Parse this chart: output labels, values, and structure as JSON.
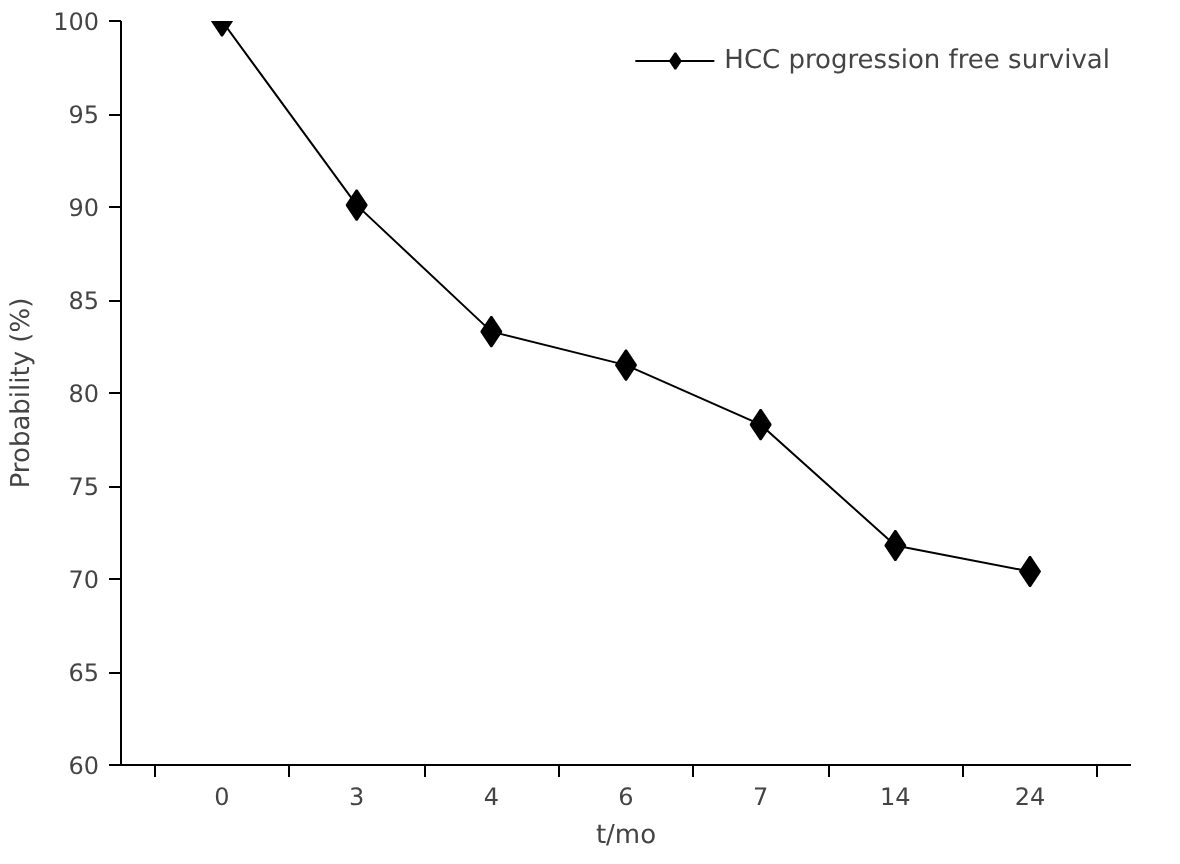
{
  "chart_data": {
    "type": "line",
    "categories": [
      "0",
      "3",
      "4",
      "6",
      "7",
      "14",
      "24"
    ],
    "series": [
      {
        "name": "HCC progression free survival",
        "color": "#000000",
        "values": [
          100,
          90.1,
          83.3,
          81.5,
          78.3,
          71.8,
          70.4
        ]
      }
    ],
    "xlabel": "t/mo",
    "ylabel": "Probability (%)",
    "ylim": [
      60,
      100
    ],
    "yticks": [
      60,
      65,
      70,
      75,
      80,
      85,
      90,
      95,
      100
    ],
    "marker": "diamond",
    "line_style": "solid",
    "grid": false,
    "legend": "top right"
  }
}
